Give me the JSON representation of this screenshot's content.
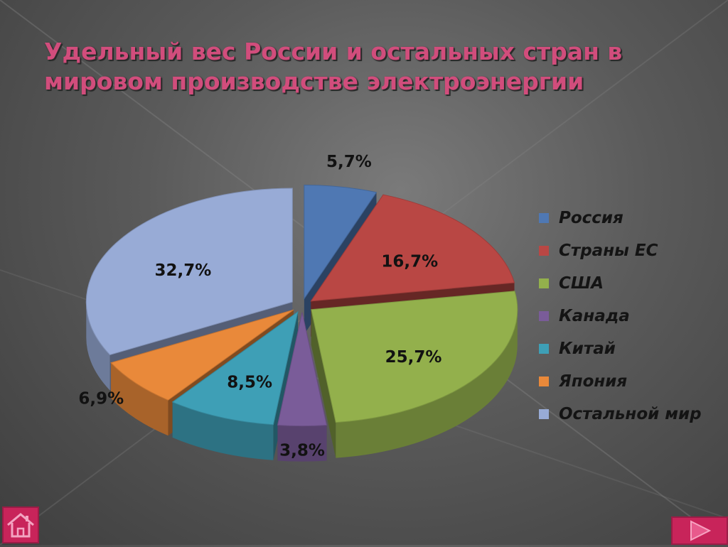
{
  "slide": {
    "title": "Удельный вес России и остальных стран в\nмировом производстве электроэнергии"
  },
  "chart_data": {
    "type": "pie",
    "style": "3d-exploded",
    "categories": [
      "Россия",
      "Страны ЕС",
      "США",
      "Канада",
      "Китай",
      "Япония",
      "Остальной мир"
    ],
    "values": [
      5.7,
      16.7,
      25.7,
      3.8,
      8.5,
      6.9,
      32.7
    ],
    "data_labels": [
      "5,7%",
      "16,7%",
      "25,7%",
      "3,8%",
      "8,5%",
      "6,9%",
      "32,7%"
    ],
    "colors": [
      "#4f78b3",
      "#b94744",
      "#93b04c",
      "#7a5c99",
      "#3e9fb6",
      "#e9893a",
      "#98abd6"
    ],
    "legend_position": "right"
  },
  "legend": {
    "items": [
      {
        "label": "Россия",
        "color": "#4f78b3"
      },
      {
        "label": "Страны ЕС",
        "color": "#b94744"
      },
      {
        "label": "США",
        "color": "#93b04c"
      },
      {
        "label": "Канада",
        "color": "#7a5c99"
      },
      {
        "label": "Китай",
        "color": "#3e9fb6"
      },
      {
        "label": "Япония",
        "color": "#e9893a"
      },
      {
        "label": "Остальной мир",
        "color": "#98abd6"
      }
    ]
  },
  "nav": {
    "home_icon": "home-icon",
    "next_icon": "play-arrow-icon",
    "button_color": "#c8245a"
  }
}
